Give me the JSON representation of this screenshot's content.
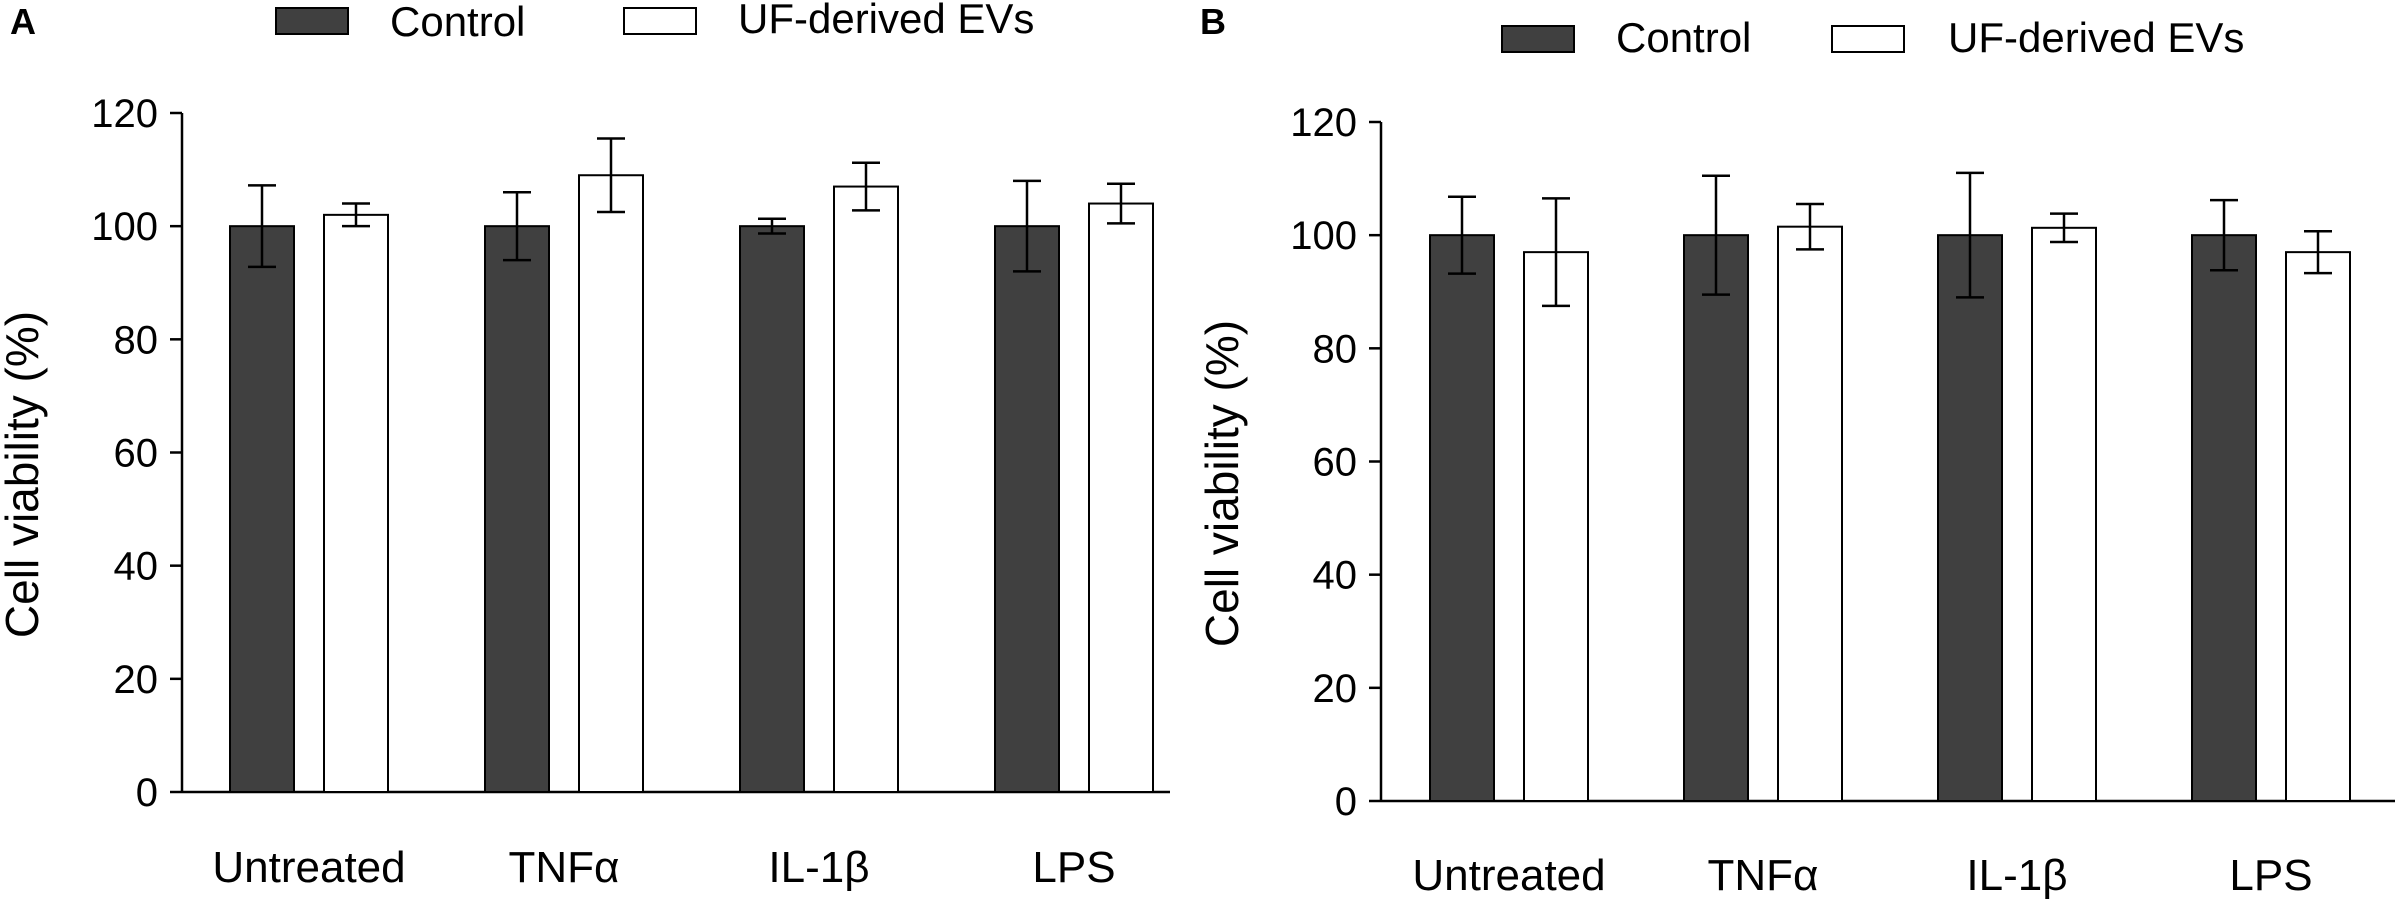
{
  "colors": {
    "control": "#404040",
    "ef": "#ffffff",
    "stroke": "#000000"
  },
  "chart_data": [
    {
      "panel": "A",
      "type": "bar",
      "ylabel": "Cell viability (%)",
      "xlabel": "",
      "ylim": [
        0,
        120
      ],
      "yticks": [
        0,
        20,
        40,
        60,
        80,
        100,
        120
      ],
      "categories": [
        "Untreated",
        "TNFα",
        "IL-1β",
        "LPS"
      ],
      "legend_position": "top",
      "series": [
        {
          "name": "Control",
          "values": [
            100,
            100,
            100,
            100
          ],
          "errors": [
            7.2,
            6,
            1.3,
            8
          ]
        },
        {
          "name": "UF-derived EVs",
          "values": [
            102,
            109,
            107,
            104
          ],
          "errors": [
            2,
            6.5,
            4.2,
            3.5
          ]
        }
      ]
    },
    {
      "panel": "B",
      "type": "bar",
      "ylabel": "Cell viability (%)",
      "xlabel": "",
      "ylim": [
        0,
        120
      ],
      "yticks": [
        0,
        20,
        40,
        60,
        80,
        100,
        120
      ],
      "categories": [
        "Untreated",
        "TNFα",
        "IL-1β",
        "LPS"
      ],
      "legend_position": "top",
      "series": [
        {
          "name": "Control",
          "values": [
            100,
            100,
            100,
            100
          ],
          "errors": [
            6.8,
            10.5,
            11,
            6.2
          ]
        },
        {
          "name": "UF-derived EVs",
          "values": [
            97,
            101.5,
            101.3,
            97
          ],
          "errors": [
            9.5,
            4,
            2.5,
            3.7
          ]
        }
      ]
    }
  ]
}
